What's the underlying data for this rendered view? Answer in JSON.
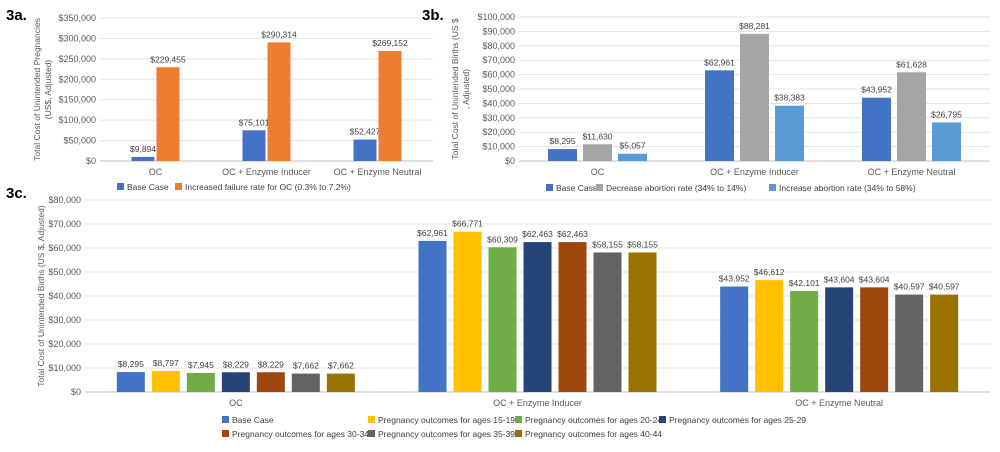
{
  "chart_data": [
    {
      "id": "3a",
      "panel_label": "3a.",
      "type": "bar",
      "ylabel": "Total Cost of Unintended Pregnancies (US$, Adjusted)",
      "ylim": [
        0,
        350000
      ],
      "yticks": [
        "$0",
        "$50,000",
        "$100,000",
        "$150,000",
        "$200,000",
        "$250,000",
        "$300,000",
        "$350,000"
      ],
      "categories": [
        "OC",
        "OC + Enzyme Inducer",
        "OC + Enzyme Neutral"
      ],
      "series": [
        {
          "name": "Base Case",
          "color": "#4472C4",
          "values": [
            9894,
            75101,
            52427
          ],
          "labels": [
            "$9,894",
            "$75,101",
            "$52,427"
          ]
        },
        {
          "name": "Increased failure rate for OC (0.3% to 7.2%)",
          "color": "#ED7D31",
          "values": [
            229455,
            290314,
            269152
          ],
          "labels": [
            "$229,455",
            "$290,314",
            "$269,152"
          ]
        }
      ],
      "grid": true,
      "legend": "bottom"
    },
    {
      "id": "3b",
      "panel_label": "3b.",
      "type": "bar",
      "ylabel": "Total Cost of Unintended Births (US $, Adjusted)",
      "ylim": [
        0,
        100000
      ],
      "yticks": [
        "$0",
        "$10,000",
        "$20,000",
        "$30,000",
        "$40,000",
        "$50,000",
        "$60,000",
        "$70,000",
        "$80,000",
        "$90,000",
        "$100,000"
      ],
      "categories": [
        "OC",
        "OC + Enzyme Inducer",
        "OC + Enzyme Neutral"
      ],
      "series": [
        {
          "name": "Base Case",
          "color": "#4472C4",
          "values": [
            8295,
            62961,
            43952
          ],
          "labels": [
            "$8,295",
            "$62,961",
            "$43,952"
          ]
        },
        {
          "name": "Decrease abortion rate (34% to 14%)",
          "color": "#A5A5A5",
          "values": [
            11630,
            88281,
            61628
          ],
          "labels": [
            "$11,630",
            "$88,281",
            "$61,628"
          ]
        },
        {
          "name": "Increase abortion rate (34% to 58%)",
          "color": "#5B9BD5",
          "values": [
            5057,
            38383,
            26795
          ],
          "labels": [
            "$5,057",
            "$38,383",
            "$26,795"
          ]
        }
      ],
      "grid": true,
      "legend": "bottom"
    },
    {
      "id": "3c",
      "panel_label": "3c.",
      "type": "bar",
      "ylabel": "Total Cost of Unintended Births (US $, Adjusted)",
      "ylim": [
        0,
        80000
      ],
      "yticks": [
        "$0",
        "$10,000",
        "$20,000",
        "$30,000",
        "$40,000",
        "$50,000",
        "$60,000",
        "$70,000",
        "$80,000"
      ],
      "categories": [
        "OC",
        "OC + Enzyme Inducer",
        "OC + Enzyme Neutral"
      ],
      "series": [
        {
          "name": "Base Case",
          "color": "#4472C4",
          "values": [
            8295,
            62961,
            43952
          ],
          "labels": [
            "$8,295",
            "$62,961",
            "$43,952"
          ]
        },
        {
          "name": "Pregnancy outcomes for ages 15-19",
          "color": "#FFC000",
          "values": [
            8797,
            66771,
            46612
          ],
          "labels": [
            "$8,797",
            "$66,771",
            "$46,612"
          ]
        },
        {
          "name": "Pregnancy outcomes for ages 20-24",
          "color": "#70AD47",
          "values": [
            7945,
            60309,
            42101
          ],
          "labels": [
            "$7,945",
            "$60,309",
            "$42,101"
          ]
        },
        {
          "name": "Pregnancy outcomes for ages 25-29",
          "color": "#264478",
          "values": [
            8229,
            62463,
            43604
          ],
          "labels": [
            "$8,229",
            "$62,463",
            "$43,604"
          ]
        },
        {
          "name": "Pregnancy outcomes for ages 30-34",
          "color": "#9E480E",
          "values": [
            8229,
            62463,
            43604
          ],
          "labels": [
            "$8,229",
            "$62,463",
            "$43,604"
          ]
        },
        {
          "name": "Pregnancy outcomes for ages 35-39",
          "color": "#636363",
          "values": [
            7662,
            58155,
            40597
          ],
          "labels": [
            "$7,662",
            "$58,155",
            "$40,597"
          ]
        },
        {
          "name": "Pregnancy outcomes for ages 40-44",
          "color": "#997300",
          "values": [
            7662,
            58155,
            40597
          ],
          "labels": [
            "$7,662",
            "$58,155",
            "$40,597"
          ]
        }
      ],
      "grid": true,
      "legend": "bottom"
    }
  ]
}
